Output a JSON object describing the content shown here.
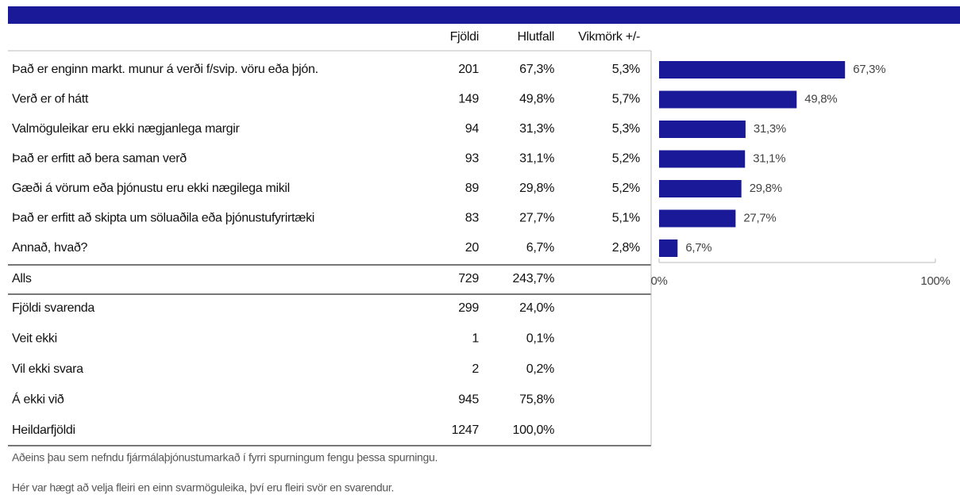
{
  "table": {
    "columns": [
      "Fjöldi",
      "Hlutfall",
      "Vikmörk +/-"
    ],
    "counts": [
      201,
      149,
      94,
      93,
      89,
      83,
      20
    ],
    "margins": [
      "5,3%",
      "5,7%",
      "5,3%",
      "5,2%",
      "5,2%",
      "5,1%",
      "2,8%"
    ],
    "total": {
      "label": "Alls",
      "count": 729,
      "percent": "243,7%"
    },
    "summary": [
      {
        "label": "Fjöldi svarenda",
        "count": 299,
        "percent": "24,0%"
      },
      {
        "label": "Veit ekki",
        "count": 1,
        "percent": "0,1%"
      },
      {
        "label": "Vil ekki svara",
        "count": 2,
        "percent": "0,2%"
      },
      {
        "label": "Á ekki við",
        "count": 945,
        "percent": "75,8%"
      },
      {
        "label": "Heildarfjöldi",
        "count": 1247,
        "percent": "100,0%"
      }
    ]
  },
  "chart_data": {
    "type": "bar",
    "orientation": "horizontal",
    "categories": [
      "Það er enginn markt. munur á verði f/svip. vöru eða þjón.",
      "Verð er of hátt",
      "Valmöguleikar eru ekki nægjanlega margir",
      "Það er erfitt að bera saman verð",
      "Gæði á vörum eða þjónustu eru ekki nægilega mikil",
      "Það er erfitt að skipta um söluaðila eða þjónustufyrirtæki",
      "Annað, hvað?"
    ],
    "values": [
      67.3,
      49.8,
      31.3,
      31.1,
      29.8,
      27.7,
      6.7
    ],
    "value_labels": [
      "67,3%",
      "49,8%",
      "31,3%",
      "31,1%",
      "29,8%",
      "27,7%",
      "6,7%"
    ],
    "color": "#1a1a99",
    "xlim": [
      0,
      100
    ],
    "xticks": [
      {
        "value": 0,
        "label": "0%"
      },
      {
        "value": 100,
        "label": "100%"
      }
    ]
  },
  "notes": [
    "Aðeins þau sem nefndu fjármálaþjónustumarkað í fyrri spurningum fengu þessa spurningu.",
    "Hér var hægt að velja fleiri en einn svarmöguleika, því eru fleiri svör en svarendur."
  ]
}
